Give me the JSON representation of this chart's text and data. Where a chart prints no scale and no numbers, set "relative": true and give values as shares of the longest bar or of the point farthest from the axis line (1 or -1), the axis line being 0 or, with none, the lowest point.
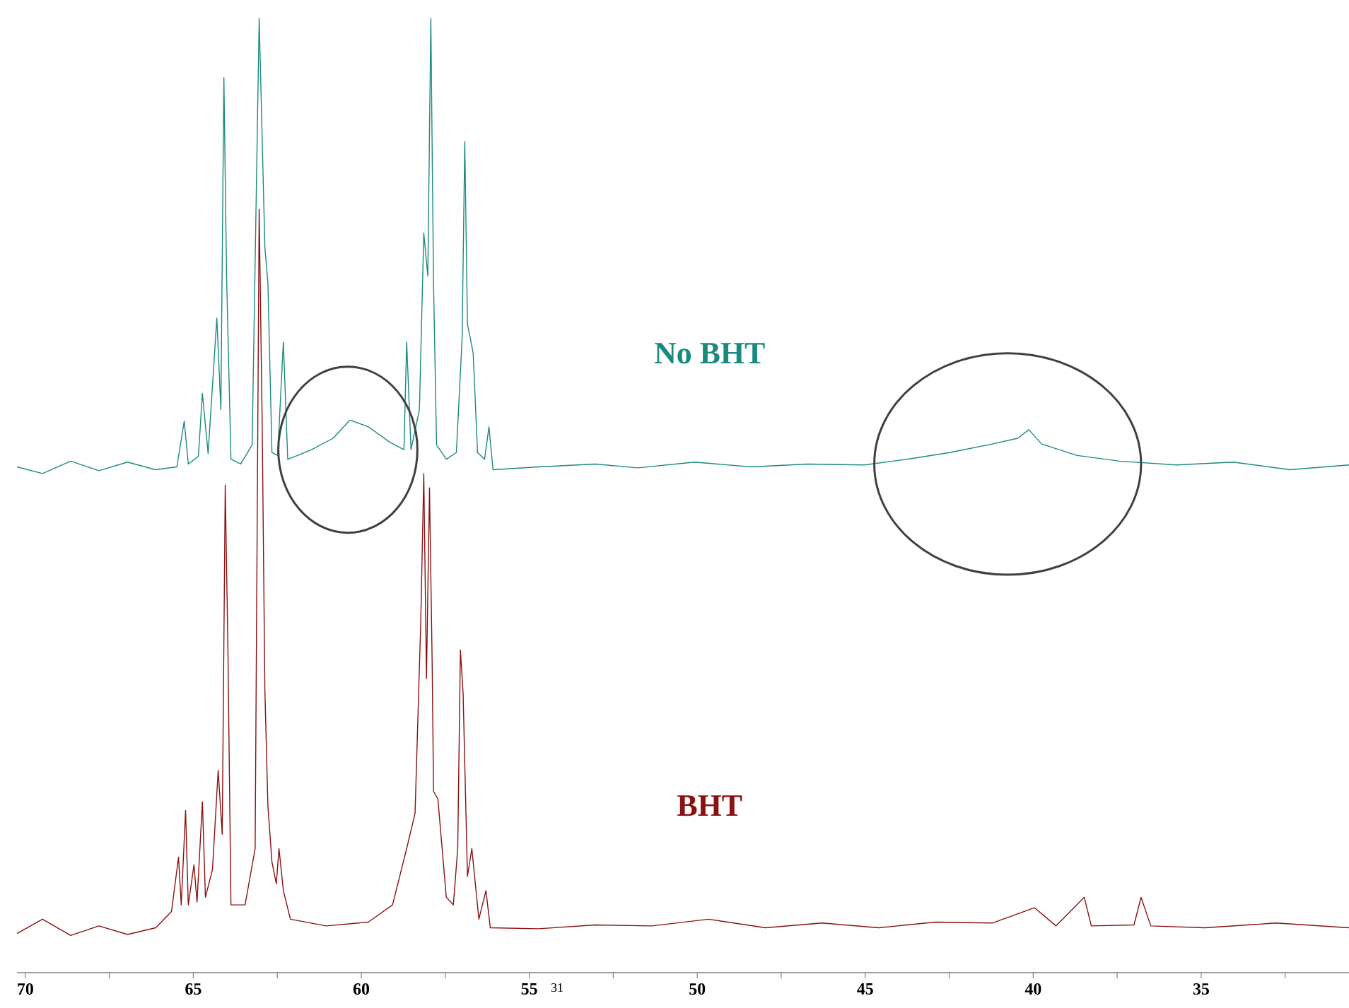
{
  "chart_data": {
    "type": "line",
    "relative": true,
    "xlabel": "31",
    "xlim": [
      70.25,
      30.6
    ],
    "xticks": [
      70,
      {
        "value": 67.5,
        "label": null
      },
      65,
      {
        "value": 62.5,
        "label": null
      },
      60,
      {
        "value": 57.5,
        "label": null
      },
      55,
      {
        "value": 52.5,
        "label": null
      },
      50,
      {
        "value": 47.5,
        "label": null
      },
      45,
      {
        "value": 42.5,
        "label": null
      },
      40,
      {
        "value": 37.5,
        "label": null
      },
      35,
      {
        "value": 32.5,
        "label": null
      }
    ],
    "series": [
      {
        "name": "No BHT",
        "color": "#1a8a80",
        "x": [
          70.25,
          69.49,
          68.65,
          67.81,
          66.96,
          66.12,
          65.49,
          65.27,
          65.15,
          64.85,
          64.73,
          64.56,
          64.3,
          64.18,
          64.09,
          64.01,
          63.88,
          63.59,
          63.25,
          63.04,
          62.87,
          62.78,
          62.66,
          62.49,
          62.32,
          62.19,
          61.9,
          61.48,
          60.84,
          60.34,
          59.79,
          59.16,
          58.73,
          58.65,
          58.52,
          58.27,
          58.14,
          58.02,
          57.93,
          57.85,
          57.76,
          57.47,
          57.17,
          57.0,
          56.92,
          56.84,
          56.75,
          56.67,
          56.54,
          56.33,
          56.2,
          56.08,
          54.73,
          53.04,
          51.77,
          50.08,
          48.4,
          46.71,
          45.02,
          43.76,
          42.49,
          41.22,
          40.46,
          40.13,
          39.75,
          38.69,
          37.43,
          35.74,
          34.05,
          32.36,
          30.6
        ],
        "values": [
          0.53,
          0.523,
          0.536,
          0.526,
          0.535,
          0.527,
          0.53,
          0.578,
          0.533,
          0.541,
          0.607,
          0.544,
          0.686,
          0.59,
          0.938,
          0.73,
          0.538,
          0.533,
          0.553,
          1.0,
          0.76,
          0.723,
          0.545,
          0.542,
          0.661,
          0.538,
          0.542,
          0.548,
          0.56,
          0.579,
          0.572,
          0.556,
          0.548,
          0.661,
          0.548,
          0.59,
          0.775,
          0.73,
          1.0,
          0.723,
          0.553,
          0.538,
          0.545,
          0.664,
          0.871,
          0.679,
          0.664,
          0.649,
          0.545,
          0.538,
          0.572,
          0.527,
          0.53,
          0.533,
          0.529,
          0.535,
          0.53,
          0.533,
          0.532,
          0.538,
          0.545,
          0.554,
          0.56,
          0.569,
          0.554,
          0.542,
          0.536,
          0.532,
          0.535,
          0.527,
          0.532
        ]
      },
      {
        "name": "BHT",
        "color": "#8b1010",
        "x": [
          70.25,
          69.49,
          68.65,
          67.81,
          66.96,
          66.12,
          65.65,
          65.44,
          65.36,
          65.23,
          65.15,
          64.98,
          64.89,
          64.73,
          64.64,
          64.43,
          64.26,
          64.14,
          64.05,
          63.97,
          63.88,
          63.46,
          63.16,
          63.04,
          62.95,
          62.87,
          62.78,
          62.66,
          62.53,
          62.45,
          62.32,
          62.11,
          61.05,
          59.79,
          59.07,
          58.65,
          58.4,
          58.23,
          58.14,
          58.06,
          57.97,
          57.89,
          57.85,
          57.72,
          57.47,
          57.26,
          57.13,
          57.05,
          56.97,
          56.84,
          56.71,
          56.5,
          56.29,
          56.16,
          54.73,
          53.04,
          51.35,
          49.66,
          47.97,
          46.29,
          44.6,
          42.91,
          41.22,
          39.96,
          39.32,
          38.48,
          38.27,
          37.0,
          36.79,
          36.5,
          34.89,
          32.78,
          30.6
        ],
        "values": [
          0.041,
          0.056,
          0.039,
          0.049,
          0.04,
          0.047,
          0.064,
          0.121,
          0.071,
          0.17,
          0.071,
          0.113,
          0.074,
          0.179,
          0.079,
          0.108,
          0.212,
          0.145,
          0.511,
          0.338,
          0.071,
          0.071,
          0.13,
          0.8,
          0.575,
          0.296,
          0.175,
          0.116,
          0.093,
          0.13,
          0.086,
          0.056,
          0.049,
          0.053,
          0.071,
          0.13,
          0.167,
          0.367,
          0.523,
          0.308,
          0.508,
          0.323,
          0.19,
          0.182,
          0.079,
          0.071,
          0.13,
          0.338,
          0.293,
          0.101,
          0.13,
          0.056,
          0.086,
          0.047,
          0.046,
          0.05,
          0.049,
          0.056,
          0.047,
          0.052,
          0.047,
          0.053,
          0.052,
          0.068,
          0.049,
          0.079,
          0.049,
          0.05,
          0.079,
          0.049,
          0.047,
          0.052,
          0.047
        ]
      }
    ]
  }
}
